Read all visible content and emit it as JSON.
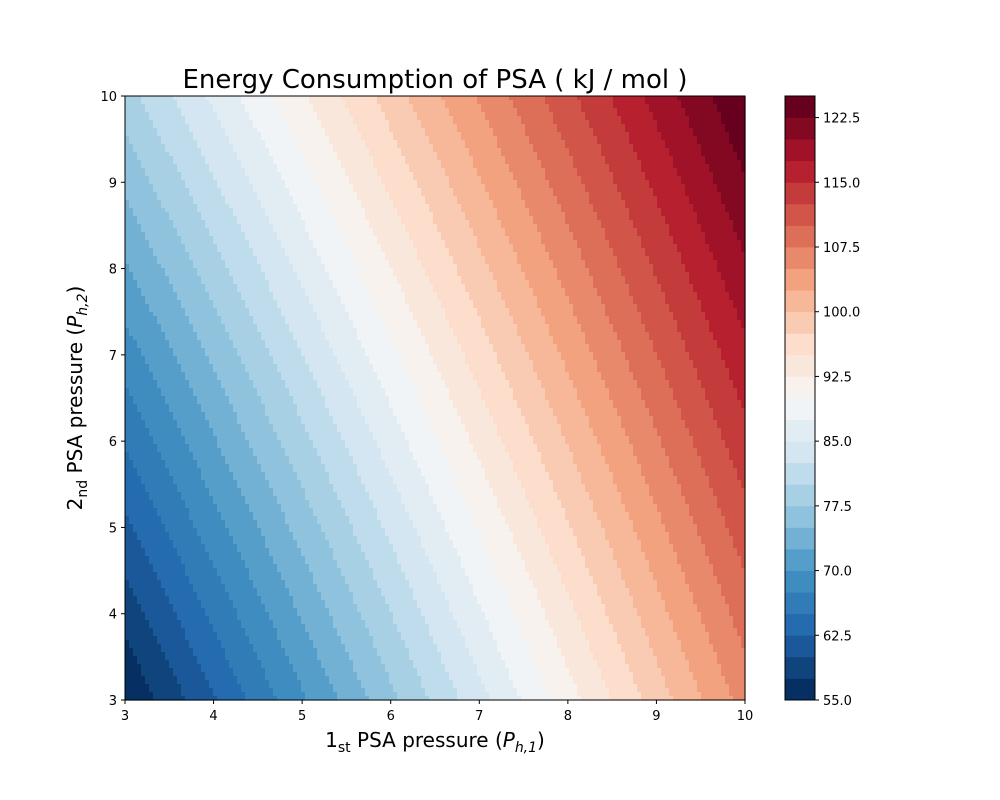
{
  "chart_data": {
    "type": "contourf",
    "title": "Energy Consumption of PSA ( kJ / mol )",
    "xlabel": {
      "prefix": "1",
      "sub": "st",
      "text": " PSA pressure (",
      "var": "P",
      "varsub": "h,1",
      "suffix": ")"
    },
    "ylabel": {
      "prefix": "2",
      "sub": "nd",
      "text": " PSA pressure (",
      "var": "P",
      "varsub": "h,2",
      "suffix": ")"
    },
    "xlim": [
      3,
      10
    ],
    "ylim": [
      3,
      10
    ],
    "xticks": [
      3,
      4,
      5,
      6,
      7,
      8,
      9,
      10
    ],
    "yticks": [
      3,
      4,
      5,
      6,
      7,
      8,
      9,
      10
    ],
    "xtick_labels": [
      "3",
      "4",
      "5",
      "6",
      "7",
      "8",
      "9",
      "10"
    ],
    "ytick_labels": [
      "3",
      "4",
      "5",
      "6",
      "7",
      "8",
      "9",
      "10"
    ],
    "colorbar": {
      "vmin": 55.0,
      "vmax": 125.0,
      "level_step": 2.5,
      "ticks": [
        55.0,
        62.5,
        70.0,
        77.5,
        85.0,
        92.5,
        100.0,
        107.5,
        115.0,
        122.5
      ],
      "tick_labels": [
        "55.0",
        "62.5",
        "70.0",
        "77.5",
        "85.0",
        "92.5",
        "100.0",
        "107.5",
        "115.0",
        "122.5"
      ],
      "colormap": "RdBu_r"
    },
    "surface_samples": [
      {
        "x": 3,
        "y": 3,
        "z": 55.0
      },
      {
        "x": 10,
        "y": 3,
        "z": 106.0
      },
      {
        "x": 3,
        "y": 10,
        "z": 79.0
      },
      {
        "x": 10,
        "y": 10,
        "z": 125.0
      }
    ]
  }
}
